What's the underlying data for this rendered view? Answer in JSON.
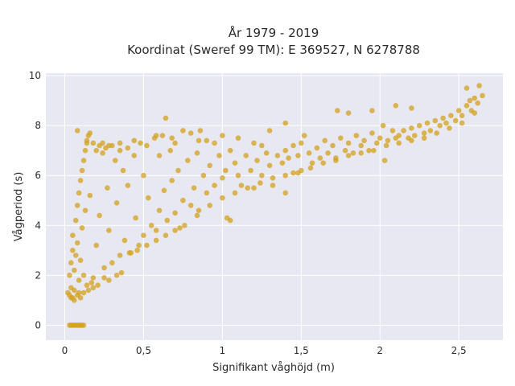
{
  "chart_data": {
    "type": "scatter",
    "title_lines": [
      "År 1979 - 2019",
      "Koordinat (Sweref 99 TM): E 369527, N 6278788"
    ],
    "xlabel": "Signifikant våghöjd (m)",
    "ylabel": "Vågperiod (s)",
    "xlim": [
      -0.12,
      2.78
    ],
    "ylim": [
      -0.6,
      10.1
    ],
    "x_ticks": [
      0,
      0.5,
      1,
      1.5,
      2,
      2.5
    ],
    "x_tick_labels": [
      "0",
      "0,5",
      "1",
      "1,5",
      "2",
      "2,5"
    ],
    "y_ticks": [
      0,
      2,
      4,
      6,
      8,
      10
    ],
    "y_tick_labels": [
      "0",
      "2",
      "4",
      "6",
      "8",
      "10"
    ],
    "grid": true,
    "background_color": "#e8e8f2",
    "marker_color": "#d4a21c",
    "series": [
      {
        "points": [
          [
            0.03,
            0.0
          ],
          [
            0.04,
            0.0
          ],
          [
            0.05,
            0.0
          ],
          [
            0.06,
            0.0
          ],
          [
            0.07,
            0.0
          ],
          [
            0.08,
            0.0
          ],
          [
            0.09,
            0.0
          ],
          [
            0.1,
            0.0
          ],
          [
            0.11,
            0.0
          ],
          [
            0.12,
            0.0
          ],
          [
            0.02,
            1.3
          ],
          [
            0.03,
            1.2
          ],
          [
            0.04,
            1.5
          ],
          [
            0.05,
            1.1
          ],
          [
            0.06,
            1.4
          ],
          [
            0.08,
            1.2
          ],
          [
            0.1,
            1.1
          ],
          [
            0.12,
            1.3
          ],
          [
            0.15,
            1.4
          ],
          [
            0.18,
            1.5
          ],
          [
            0.03,
            2.0
          ],
          [
            0.04,
            2.5
          ],
          [
            0.05,
            3.0
          ],
          [
            0.05,
            3.6
          ],
          [
            0.06,
            2.2
          ],
          [
            0.07,
            4.2
          ],
          [
            0.07,
            2.8
          ],
          [
            0.08,
            4.8
          ],
          [
            0.08,
            3.3
          ],
          [
            0.09,
            5.3
          ],
          [
            0.09,
            1.8
          ],
          [
            0.1,
            5.8
          ],
          [
            0.1,
            2.6
          ],
          [
            0.11,
            6.2
          ],
          [
            0.11,
            3.9
          ],
          [
            0.12,
            6.6
          ],
          [
            0.12,
            2.0
          ],
          [
            0.13,
            7.0
          ],
          [
            0.13,
            4.6
          ],
          [
            0.14,
            7.3
          ],
          [
            0.15,
            7.6
          ],
          [
            0.16,
            7.7
          ],
          [
            0.16,
            5.2
          ],
          [
            0.18,
            7.3
          ],
          [
            0.18,
            1.9
          ],
          [
            0.2,
            7.0
          ],
          [
            0.2,
            3.2
          ],
          [
            0.22,
            7.2
          ],
          [
            0.22,
            4.4
          ],
          [
            0.24,
            6.9
          ],
          [
            0.25,
            2.3
          ],
          [
            0.26,
            7.1
          ],
          [
            0.27,
            5.5
          ],
          [
            0.28,
            3.8
          ],
          [
            0.3,
            7.2
          ],
          [
            0.3,
            2.5
          ],
          [
            0.32,
            6.6
          ],
          [
            0.33,
            4.9
          ],
          [
            0.35,
            7.0
          ],
          [
            0.35,
            2.8
          ],
          [
            0.37,
            6.2
          ],
          [
            0.38,
            3.4
          ],
          [
            0.4,
            7.1
          ],
          [
            0.4,
            5.6
          ],
          [
            0.42,
            2.9
          ],
          [
            0.44,
            6.8
          ],
          [
            0.45,
            4.3
          ],
          [
            0.47,
            3.2
          ],
          [
            0.48,
            7.3
          ],
          [
            0.5,
            6.0
          ],
          [
            0.5,
            3.6
          ],
          [
            0.52,
            7.2
          ],
          [
            0.53,
            5.1
          ],
          [
            0.55,
            4.0
          ],
          [
            0.57,
            7.5
          ],
          [
            0.58,
            3.8
          ],
          [
            0.6,
            6.8
          ],
          [
            0.6,
            4.6
          ],
          [
            0.62,
            7.6
          ],
          [
            0.63,
            5.4
          ],
          [
            0.64,
            8.3
          ],
          [
            0.65,
            4.2
          ],
          [
            0.67,
            7.0
          ],
          [
            0.68,
            5.8
          ],
          [
            0.7,
            7.3
          ],
          [
            0.7,
            4.5
          ],
          [
            0.72,
            6.2
          ],
          [
            0.73,
            3.9
          ],
          [
            0.75,
            7.8
          ],
          [
            0.75,
            5.0
          ],
          [
            0.78,
            6.6
          ],
          [
            0.8,
            4.8
          ],
          [
            0.8,
            7.7
          ],
          [
            0.82,
            5.5
          ],
          [
            0.84,
            6.9
          ],
          [
            0.85,
            4.6
          ],
          [
            0.86,
            7.8
          ],
          [
            0.88,
            6.0
          ],
          [
            0.9,
            5.3
          ],
          [
            0.9,
            7.4
          ],
          [
            0.92,
            6.4
          ],
          [
            0.95,
            5.6
          ],
          [
            0.95,
            7.3
          ],
          [
            0.98,
            6.8
          ],
          [
            1.0,
            5.9
          ],
          [
            1.0,
            7.6
          ],
          [
            1.02,
            6.2
          ],
          [
            1.03,
            4.3
          ],
          [
            1.05,
            4.2
          ],
          [
            1.05,
            7.0
          ],
          [
            1.08,
            6.5
          ],
          [
            1.1,
            6.0
          ],
          [
            1.1,
            7.5
          ],
          [
            1.12,
            5.6
          ],
          [
            1.15,
            6.8
          ],
          [
            1.18,
            6.2
          ],
          [
            1.2,
            7.3
          ],
          [
            1.2,
            5.5
          ],
          [
            1.22,
            6.6
          ],
          [
            1.25,
            7.2
          ],
          [
            1.25,
            6.0
          ],
          [
            1.28,
            6.9
          ],
          [
            1.3,
            6.4
          ],
          [
            1.3,
            7.8
          ],
          [
            1.32,
            5.6
          ],
          [
            1.35,
            6.8
          ],
          [
            1.38,
            6.5
          ],
          [
            1.4,
            7.0
          ],
          [
            1.4,
            5.3
          ],
          [
            1.42,
            6.7
          ],
          [
            1.45,
            7.2
          ],
          [
            1.45,
            6.1
          ],
          [
            1.48,
            6.8
          ],
          [
            1.5,
            7.3
          ],
          [
            1.5,
            6.2
          ],
          [
            1.52,
            7.6
          ],
          [
            1.55,
            6.9
          ],
          [
            1.57,
            6.5
          ],
          [
            1.6,
            7.1
          ],
          [
            1.62,
            6.7
          ],
          [
            1.65,
            7.4
          ],
          [
            1.67,
            6.9
          ],
          [
            1.7,
            7.2
          ],
          [
            1.72,
            6.6
          ],
          [
            1.75,
            7.5
          ],
          [
            1.78,
            7.0
          ],
          [
            1.8,
            7.3
          ],
          [
            1.83,
            6.9
          ],
          [
            1.85,
            7.6
          ],
          [
            1.88,
            7.2
          ],
          [
            1.9,
            7.4
          ],
          [
            1.93,
            7.0
          ],
          [
            1.95,
            7.7
          ],
          [
            1.98,
            7.3
          ],
          [
            2.0,
            7.5
          ],
          [
            2.02,
            8.0
          ],
          [
            2.03,
            6.6
          ],
          [
            2.05,
            7.4
          ],
          [
            2.08,
            7.8
          ],
          [
            2.1,
            7.5
          ],
          [
            2.12,
            7.6
          ],
          [
            2.15,
            7.8
          ],
          [
            2.18,
            7.5
          ],
          [
            2.2,
            7.9
          ],
          [
            2.22,
            7.6
          ],
          [
            2.25,
            8.0
          ],
          [
            2.28,
            7.7
          ],
          [
            2.3,
            8.1
          ],
          [
            2.32,
            7.8
          ],
          [
            2.35,
            8.2
          ],
          [
            2.38,
            8.0
          ],
          [
            2.4,
            8.3
          ],
          [
            2.42,
            8.1
          ],
          [
            2.45,
            8.4
          ],
          [
            2.48,
            8.2
          ],
          [
            2.5,
            8.6
          ],
          [
            2.52,
            8.4
          ],
          [
            2.55,
            8.8
          ],
          [
            2.57,
            9.0
          ],
          [
            2.58,
            8.6
          ],
          [
            2.6,
            9.1
          ],
          [
            2.62,
            8.9
          ],
          [
            2.63,
            9.6
          ],
          [
            2.65,
            9.2
          ],
          [
            2.55,
            9.5
          ],
          [
            2.2,
            8.7
          ],
          [
            2.1,
            8.8
          ],
          [
            1.95,
            8.6
          ],
          [
            1.8,
            8.5
          ],
          [
            1.73,
            8.6
          ],
          [
            1.4,
            8.1
          ],
          [
            0.85,
            7.4
          ],
          [
            0.68,
            7.5
          ],
          [
            0.58,
            7.6
          ],
          [
            0.44,
            7.4
          ],
          [
            0.35,
            7.3
          ],
          [
            0.28,
            7.2
          ],
          [
            0.24,
            7.3
          ],
          [
            0.08,
            7.8
          ],
          [
            0.14,
            7.4
          ],
          [
            0.04,
            1.1
          ],
          [
            0.06,
            1.0
          ],
          [
            0.09,
            1.3
          ],
          [
            0.14,
            1.6
          ],
          [
            0.17,
            1.7
          ],
          [
            0.21,
            1.6
          ],
          [
            0.25,
            1.9
          ],
          [
            0.28,
            1.8
          ],
          [
            0.33,
            2.0
          ],
          [
            0.36,
            2.1
          ],
          [
            0.41,
            2.9
          ],
          [
            0.46,
            3.0
          ],
          [
            0.52,
            3.2
          ],
          [
            0.58,
            3.4
          ],
          [
            0.64,
            3.6
          ],
          [
            0.7,
            3.8
          ],
          [
            0.76,
            4.0
          ],
          [
            0.84,
            4.4
          ],
          [
            0.92,
            4.8
          ],
          [
            1.0,
            5.1
          ],
          [
            1.08,
            5.3
          ],
          [
            1.16,
            5.5
          ],
          [
            1.24,
            5.7
          ],
          [
            1.32,
            5.9
          ],
          [
            1.4,
            6.0
          ],
          [
            1.48,
            6.1
          ],
          [
            1.56,
            6.3
          ],
          [
            1.64,
            6.5
          ],
          [
            1.72,
            6.7
          ],
          [
            1.8,
            6.8
          ],
          [
            1.88,
            6.9
          ],
          [
            1.96,
            7.0
          ],
          [
            2.04,
            7.2
          ],
          [
            2.12,
            7.3
          ],
          [
            2.2,
            7.4
          ],
          [
            2.28,
            7.5
          ],
          [
            2.36,
            7.7
          ],
          [
            2.44,
            7.9
          ],
          [
            2.52,
            8.1
          ],
          [
            2.6,
            8.5
          ]
        ]
      }
    ]
  }
}
